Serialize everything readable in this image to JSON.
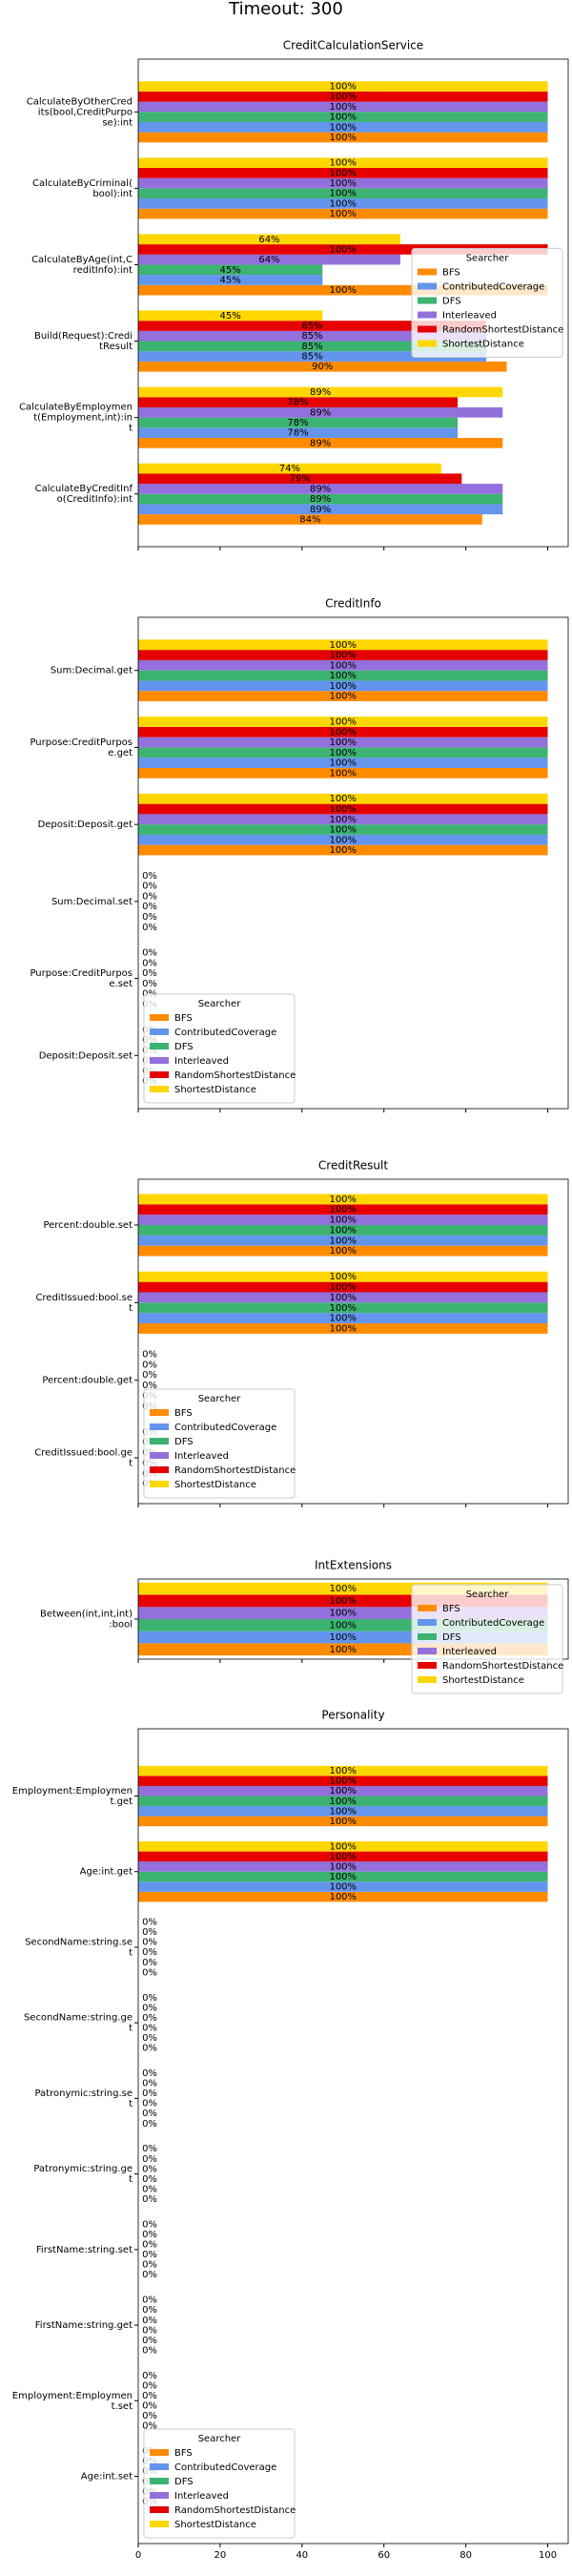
{
  "title": "Timeout: 300",
  "chart_data": [
    {
      "type": "barh",
      "title": "CreditCalculationService",
      "categories": [
        "CalculateByOtherCred\nits(bool,CreditPurpo\nse):int",
        "CalculateByCriminal(\nbool):int",
        "CalculateByAge(int,C\nreditInfo):int",
        "Build(Request):Credi\ntResult",
        "CalculateByEmploymen\nt(Employment,int):in\nt",
        "CalculateByCreditInf\no(CreditInfo):int"
      ],
      "series": [
        {
          "name": "BFS",
          "color": "#ff8c00",
          "values": [
            100,
            100,
            100,
            90,
            89,
            84
          ],
          "value_labels": [
            "100%",
            "100%",
            "100%",
            "90%",
            "89%",
            "84%"
          ]
        },
        {
          "name": "ContributedCoverage",
          "color": "#6495ed",
          "values": [
            100,
            100,
            45,
            85,
            78,
            89
          ],
          "value_labels": [
            "100%",
            "100%",
            "45%",
            "85%",
            "78%",
            "89%"
          ]
        },
        {
          "name": "DFS",
          "color": "#3cb371",
          "values": [
            100,
            100,
            45,
            85,
            78,
            89
          ],
          "value_labels": [
            "100%",
            "100%",
            "45%",
            "85%",
            "78%",
            "89%"
          ]
        },
        {
          "name": "Interleaved",
          "color": "#9370db",
          "values": [
            100,
            100,
            64,
            85,
            89,
            89
          ],
          "value_labels": [
            "100%",
            "100%",
            "64%",
            "85%",
            "89%",
            "89%"
          ]
        },
        {
          "name": "RandomShortestDistance",
          "color": "#e60000",
          "values": [
            100,
            100,
            100,
            85,
            78,
            79
          ],
          "value_labels": [
            "100%",
            "100%",
            "100%",
            "85%",
            "78%",
            "79%"
          ]
        },
        {
          "name": "ShortestDistance",
          "color": "#ffd700",
          "values": [
            100,
            100,
            64,
            45,
            89,
            74
          ],
          "value_labels": [
            "100%",
            "100%",
            "64%",
            "45%",
            "89%",
            "74%"
          ]
        }
      ],
      "xlim": [
        0,
        105
      ],
      "xticks": [
        0,
        20,
        40,
        60,
        80,
        100
      ],
      "xtick_labels": false,
      "legend": "center right",
      "legend_title": "Searcher"
    },
    {
      "type": "barh",
      "title": "CreditInfo",
      "categories": [
        "Sum:Decimal.get",
        "Purpose:CreditPurpos\ne.get",
        "Deposit:Deposit.get",
        "Sum:Decimal.set",
        "Purpose:CreditPurpos\ne.set",
        "Deposit:Deposit.set"
      ],
      "series": [
        {
          "name": "BFS",
          "color": "#ff8c00",
          "values": [
            100,
            100,
            100,
            0,
            0,
            0
          ],
          "value_labels": [
            "100%",
            "100%",
            "100%",
            "0%",
            "0%",
            "0%"
          ]
        },
        {
          "name": "ContributedCoverage",
          "color": "#6495ed",
          "values": [
            100,
            100,
            100,
            0,
            0,
            0
          ],
          "value_labels": [
            "100%",
            "100%",
            "100%",
            "0%",
            "0%",
            "0%"
          ]
        },
        {
          "name": "DFS",
          "color": "#3cb371",
          "values": [
            100,
            100,
            100,
            0,
            0,
            0
          ],
          "value_labels": [
            "100%",
            "100%",
            "100%",
            "0%",
            "0%",
            "0%"
          ]
        },
        {
          "name": "Interleaved",
          "color": "#9370db",
          "values": [
            100,
            100,
            100,
            0,
            0,
            0
          ],
          "value_labels": [
            "100%",
            "100%",
            "100%",
            "0%",
            "0%",
            "0%"
          ]
        },
        {
          "name": "RandomShortestDistance",
          "color": "#e60000",
          "values": [
            100,
            100,
            100,
            0,
            0,
            0
          ],
          "value_labels": [
            "100%",
            "100%",
            "100%",
            "0%",
            "0%",
            "0%"
          ]
        },
        {
          "name": "ShortestDistance",
          "color": "#ffd700",
          "values": [
            100,
            100,
            100,
            0,
            0,
            0
          ],
          "value_labels": [
            "100%",
            "100%",
            "100%",
            "0%",
            "0%",
            "0%"
          ]
        }
      ],
      "xlim": [
        0,
        105
      ],
      "xticks": [
        0,
        20,
        40,
        60,
        80,
        100
      ],
      "xtick_labels": false,
      "legend": "lower left",
      "legend_title": "Searcher"
    },
    {
      "type": "barh",
      "title": "CreditResult",
      "categories": [
        "Percent:double.set",
        "CreditIssued:bool.se\nt",
        "Percent:double.get",
        "CreditIssued:bool.ge\nt"
      ],
      "series": [
        {
          "name": "BFS",
          "color": "#ff8c00",
          "values": [
            100,
            100,
            0,
            0
          ],
          "value_labels": [
            "100%",
            "100%",
            "0%",
            "0%"
          ]
        },
        {
          "name": "ContributedCoverage",
          "color": "#6495ed",
          "values": [
            100,
            100,
            0,
            0
          ],
          "value_labels": [
            "100%",
            "100%",
            "0%",
            "0%"
          ]
        },
        {
          "name": "DFS",
          "color": "#3cb371",
          "values": [
            100,
            100,
            0,
            0
          ],
          "value_labels": [
            "100%",
            "100%",
            "0%",
            "0%"
          ]
        },
        {
          "name": "Interleaved",
          "color": "#9370db",
          "values": [
            100,
            100,
            0,
            0
          ],
          "value_labels": [
            "100%",
            "100%",
            "0%",
            "0%"
          ]
        },
        {
          "name": "RandomShortestDistance",
          "color": "#e60000",
          "values": [
            100,
            100,
            0,
            0
          ],
          "value_labels": [
            "100%",
            "100%",
            "0%",
            "0%"
          ]
        },
        {
          "name": "ShortestDistance",
          "color": "#ffd700",
          "values": [
            100,
            100,
            0,
            0
          ],
          "value_labels": [
            "100%",
            "100%",
            "0%",
            "0%"
          ]
        }
      ],
      "xlim": [
        0,
        105
      ],
      "xticks": [
        0,
        20,
        40,
        60,
        80,
        100
      ],
      "xtick_labels": false,
      "legend": "lower left",
      "legend_title": "Searcher"
    },
    {
      "type": "barh",
      "title": "IntExtensions",
      "categories": [
        "Between(int,int,int)\n:bool"
      ],
      "series": [
        {
          "name": "BFS",
          "color": "#ff8c00",
          "values": [
            100
          ],
          "value_labels": [
            "100%"
          ]
        },
        {
          "name": "ContributedCoverage",
          "color": "#6495ed",
          "values": [
            100
          ],
          "value_labels": [
            "100%"
          ]
        },
        {
          "name": "DFS",
          "color": "#3cb371",
          "values": [
            100
          ],
          "value_labels": [
            "100%"
          ]
        },
        {
          "name": "Interleaved",
          "color": "#9370db",
          "values": [
            100
          ],
          "value_labels": [
            "100%"
          ]
        },
        {
          "name": "RandomShortestDistance",
          "color": "#e60000",
          "values": [
            100
          ],
          "value_labels": [
            "100%"
          ]
        },
        {
          "name": "ShortestDistance",
          "color": "#ffd700",
          "values": [
            100
          ],
          "value_labels": [
            "100%"
          ]
        }
      ],
      "xlim": [
        0,
        105
      ],
      "xticks": [
        0,
        20,
        40,
        60,
        80,
        100
      ],
      "xtick_labels": false,
      "legend": "upper right",
      "legend_title": "Searcher"
    },
    {
      "type": "barh",
      "title": "Personality",
      "categories": [
        "Employment:Employmen\nt.get",
        "Age:int.get",
        "SecondName:string.se\nt",
        "SecondName:string.ge\nt",
        "Patronymic:string.se\nt",
        "Patronymic:string.ge\nt",
        "FirstName:string.set",
        "FirstName:string.get",
        "Employment:Employmen\nt.set",
        "Age:int.set"
      ],
      "series": [
        {
          "name": "BFS",
          "color": "#ff8c00",
          "values": [
            100,
            100,
            0,
            0,
            0,
            0,
            0,
            0,
            0,
            0
          ],
          "value_labels": [
            "100%",
            "100%",
            "0%",
            "0%",
            "0%",
            "0%",
            "0%",
            "0%",
            "0%",
            "0%"
          ]
        },
        {
          "name": "ContributedCoverage",
          "color": "#6495ed",
          "values": [
            100,
            100,
            0,
            0,
            0,
            0,
            0,
            0,
            0,
            0
          ],
          "value_labels": [
            "100%",
            "100%",
            "0%",
            "0%",
            "0%",
            "0%",
            "0%",
            "0%",
            "0%",
            "0%"
          ]
        },
        {
          "name": "DFS",
          "color": "#3cb371",
          "values": [
            100,
            100,
            0,
            0,
            0,
            0,
            0,
            0,
            0,
            0
          ],
          "value_labels": [
            "100%",
            "100%",
            "0%",
            "0%",
            "0%",
            "0%",
            "0%",
            "0%",
            "0%",
            "0%"
          ]
        },
        {
          "name": "Interleaved",
          "color": "#9370db",
          "values": [
            100,
            100,
            0,
            0,
            0,
            0,
            0,
            0,
            0,
            0
          ],
          "value_labels": [
            "100%",
            "100%",
            "0%",
            "0%",
            "0%",
            "0%",
            "0%",
            "0%",
            "0%",
            "0%"
          ]
        },
        {
          "name": "RandomShortestDistance",
          "color": "#e60000",
          "values": [
            100,
            100,
            0,
            0,
            0,
            0,
            0,
            0,
            0,
            0
          ],
          "value_labels": [
            "100%",
            "100%",
            "0%",
            "0%",
            "0%",
            "0%",
            "0%",
            "0%",
            "0%",
            "0%"
          ]
        },
        {
          "name": "ShortestDistance",
          "color": "#ffd700",
          "values": [
            100,
            100,
            0,
            0,
            0,
            0,
            0,
            0,
            0,
            0
          ],
          "value_labels": [
            "100%",
            "100%",
            "0%",
            "0%",
            "0%",
            "0%",
            "0%",
            "0%",
            "0%",
            "0%"
          ]
        }
      ],
      "xlim": [
        0,
        105
      ],
      "xticks": [
        0,
        20,
        40,
        60,
        80,
        100
      ],
      "xtick_labels": true,
      "legend": "lower left",
      "legend_title": "Searcher"
    }
  ]
}
